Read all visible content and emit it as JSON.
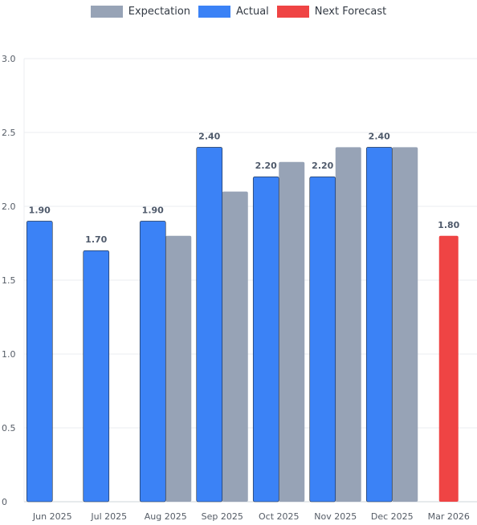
{
  "chart_data": {
    "type": "bar",
    "categories": [
      "Jun 2025",
      "Jul 2025",
      "Aug 2025",
      "Sep 2025",
      "Oct 2025",
      "Nov 2025",
      "Dec 2025",
      "Mar 2026"
    ],
    "series": [
      {
        "name": "Expectation",
        "color": "#97a3b6",
        "values": [
          null,
          null,
          1.8,
          2.1,
          2.3,
          2.4,
          2.4,
          null
        ]
      },
      {
        "name": "Actual",
        "color": "#3b82f6",
        "values": [
          1.9,
          1.7,
          1.9,
          2.4,
          2.2,
          2.2,
          2.4,
          null
        ]
      },
      {
        "name": "Next Forecast",
        "color": "#ef4444",
        "values": [
          null,
          null,
          null,
          null,
          null,
          null,
          null,
          1.8
        ]
      }
    ],
    "data_labels": [
      "1.90",
      "1.70",
      "1.90",
      "2.40",
      "2.20",
      "2.20",
      "2.40",
      "1.80"
    ],
    "y_ticks": [
      "0",
      "0.5",
      "1.0",
      "1.5",
      "2.0",
      "2.5",
      "3.0"
    ],
    "ylim": [
      0,
      3.0
    ],
    "grid": true,
    "legend_position": "top-center",
    "xlabel": "",
    "ylabel": ""
  }
}
